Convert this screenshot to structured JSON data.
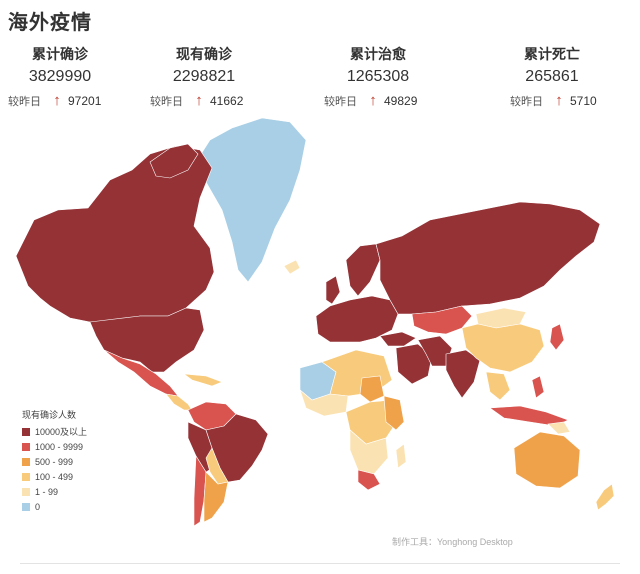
{
  "title": "海外疫情",
  "stats": [
    {
      "label": "累计确诊",
      "value": "3829990",
      "delta_label": "较昨日",
      "delta": "97201"
    },
    {
      "label": "现有确诊",
      "value": "2298821",
      "delta_label": "较昨日",
      "delta": "41662"
    },
    {
      "label": "累计治愈",
      "value": "1265308",
      "delta_label": "较昨日",
      "delta": "49829"
    },
    {
      "label": "累计死亡",
      "value": "265861",
      "delta_label": "较昨日",
      "delta": "5710"
    }
  ],
  "legend": {
    "title": "现有确诊人数",
    "items": [
      {
        "label": "10000及以上",
        "color": "#943236"
      },
      {
        "label": "1000 - 9999",
        "color": "#d9534f"
      },
      {
        "label": "500 - 999",
        "color": "#f0a24b"
      },
      {
        "label": "100 - 499",
        "color": "#f8cb7c"
      },
      {
        "label": "1 - 99",
        "color": "#fbe2b2"
      },
      {
        "label": "0",
        "color": "#a8cfe6"
      }
    ]
  },
  "credit": "制作工具：Yonghong Desktop",
  "icons": {
    "increase": "arrow-up-icon"
  }
}
